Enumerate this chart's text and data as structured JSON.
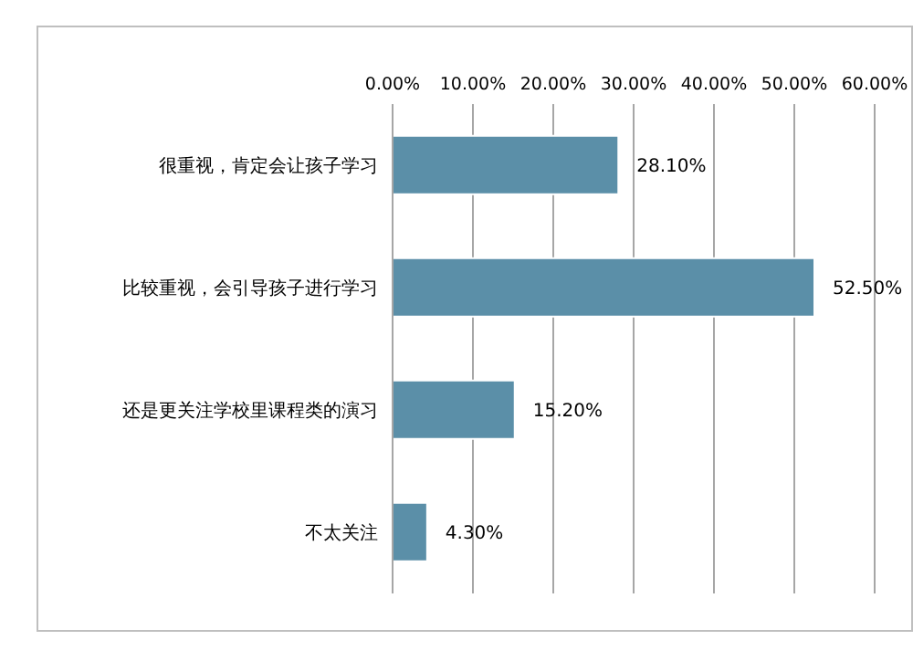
{
  "chart_data": {
    "type": "bar",
    "orientation": "horizontal",
    "categories": [
      "很重视，肯定会让孩子学习",
      "比较重视，会引导孩子进行学习",
      "还是更关注学校里课程类的演习",
      "不太关注"
    ],
    "values": [
      28.1,
      52.5,
      15.2,
      4.3
    ],
    "value_labels": [
      "28.10%",
      "52.50%",
      "15.20%",
      "4.30%"
    ],
    "color": "#5b8fa8",
    "xlim": [
      0,
      60
    ],
    "xticks": [
      {
        "value": 0,
        "label": "0.00%"
      },
      {
        "value": 10,
        "label": "10.00%"
      },
      {
        "value": 20,
        "label": "20.00%"
      },
      {
        "value": 30,
        "label": "30.00%"
      },
      {
        "value": 40,
        "label": "40.00%"
      },
      {
        "value": 50,
        "label": "50.00%"
      },
      {
        "value": 60,
        "label": "60.00%"
      }
    ],
    "grid": "x"
  }
}
